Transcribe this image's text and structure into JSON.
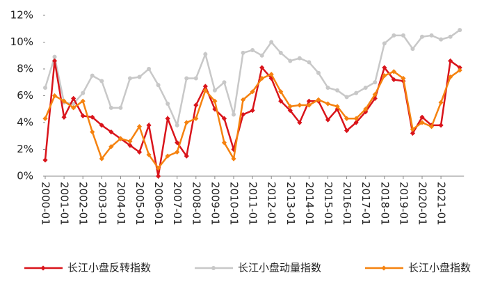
{
  "chart_data": {
    "type": "line",
    "categories": [
      "2000-01",
      null,
      "2001-01",
      null,
      "2002-01",
      null,
      "2003-01",
      null,
      "2004-01",
      null,
      "2005-01",
      null,
      "2006-01",
      null,
      "2007-01",
      null,
      "2008-01",
      null,
      "2009-01",
      null,
      "2010-01",
      null,
      "2011-01",
      null,
      "2012-01",
      null,
      "2013-01",
      null,
      "2014-01",
      null,
      "2015-01",
      null,
      "2016-01",
      null,
      "2017-01",
      null,
      "2018-01",
      null,
      "2019-01",
      null,
      "2020-01",
      null,
      "2021-01",
      null,
      null
    ],
    "series": [
      {
        "name": "长江小盘反转指数",
        "color": "#d9141b",
        "marker": "diamond",
        "values": [
          1.2,
          8.6,
          4.4,
          5.8,
          4.5,
          4.4,
          3.8,
          3.3,
          2.8,
          2.3,
          1.8,
          3.8,
          0.0,
          4.3,
          2.5,
          1.5,
          5.3,
          6.7,
          5.0,
          4.3,
          2.0,
          4.6,
          4.9,
          8.1,
          7.3,
          5.6,
          4.9,
          4.0,
          5.6,
          5.6,
          4.2,
          5.0,
          3.4,
          4.0,
          4.8,
          5.8,
          8.1,
          7.2,
          7.1,
          3.2,
          4.4,
          3.8,
          3.8,
          8.6,
          8.1
        ]
      },
      {
        "name": "长江小盘动量指数",
        "color": "#c8c8c8",
        "marker": "circle",
        "values": [
          6.6,
          8.9,
          5.5,
          5.4,
          6.2,
          7.5,
          7.1,
          5.1,
          5.1,
          7.3,
          7.4,
          8.0,
          6.8,
          5.4,
          3.8,
          7.3,
          7.3,
          9.1,
          6.4,
          7.0,
          4.6,
          9.2,
          9.4,
          9.0,
          10.0,
          9.2,
          8.6,
          8.8,
          8.5,
          7.7,
          6.6,
          6.4,
          5.9,
          6.2,
          6.6,
          7.0,
          9.9,
          10.5,
          10.5,
          9.5,
          10.4,
          10.5,
          10.2,
          10.4,
          10.9
        ]
      },
      {
        "name": "长江小盘指数",
        "color": "#f5820f",
        "marker": "diamond",
        "values": [
          4.3,
          6.0,
          5.6,
          5.1,
          5.6,
          3.3,
          1.3,
          2.2,
          2.8,
          2.6,
          3.7,
          1.6,
          0.6,
          1.5,
          1.8,
          4.0,
          4.3,
          6.4,
          5.6,
          2.5,
          1.3,
          5.7,
          6.3,
          7.3,
          7.6,
          6.3,
          5.2,
          5.3,
          5.3,
          5.7,
          5.4,
          5.2,
          4.3,
          4.3,
          5.0,
          6.1,
          7.5,
          7.8,
          7.3,
          3.5,
          4.0,
          3.7,
          5.5,
          7.4,
          7.9
        ]
      }
    ],
    "ylim": [
      0,
      12
    ],
    "yticks": [
      {
        "value": 0,
        "label": "0%"
      },
      {
        "value": 2,
        "label": "2%"
      },
      {
        "value": 4,
        "label": "4%"
      },
      {
        "value": 6,
        "label": "6%"
      },
      {
        "value": 8,
        "label": "8%"
      },
      {
        "value": 10,
        "label": "10%"
      },
      {
        "value": 12,
        "label": "12%"
      }
    ],
    "grid": false,
    "legend": "bottom"
  }
}
